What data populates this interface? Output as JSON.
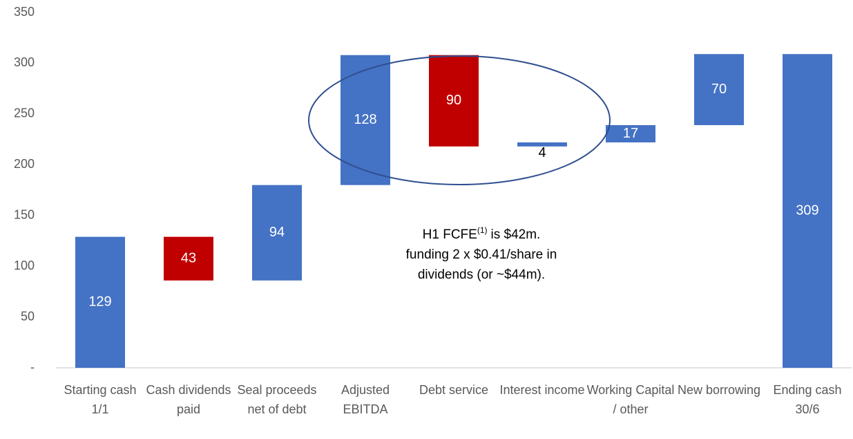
{
  "chart_data": {
    "type": "waterfall",
    "categories": [
      "Starting cash 1/1",
      "Cash dividends paid",
      "Seal proceeds net of debt",
      "Adjusted EBITDA",
      "Debt service",
      "Interest income",
      "Working Capital / other",
      "New borrowing",
      "Ending cash 30/6"
    ],
    "values": [
      129,
      -43,
      94,
      128,
      -90,
      4,
      17,
      70,
      309
    ],
    "value_labels": [
      "129",
      "43",
      "94",
      "128",
      "90",
      "4",
      "17",
      "70",
      "309"
    ],
    "is_total": [
      true,
      false,
      false,
      false,
      false,
      false,
      false,
      false,
      true
    ],
    "increase_color": "#4472c4",
    "decrease_color": "#c00000",
    "ylim": [
      0,
      350
    ],
    "yticks": [
      {
        "value": 0,
        "label": "-"
      },
      50,
      100,
      150,
      200,
      250,
      300,
      350
    ],
    "annotation": [
      "H1 FCFE",
      "(1)",
      "is $42m.",
      "funding 2 x $0.41/share in",
      "dividends (or ~$44m)."
    ]
  }
}
